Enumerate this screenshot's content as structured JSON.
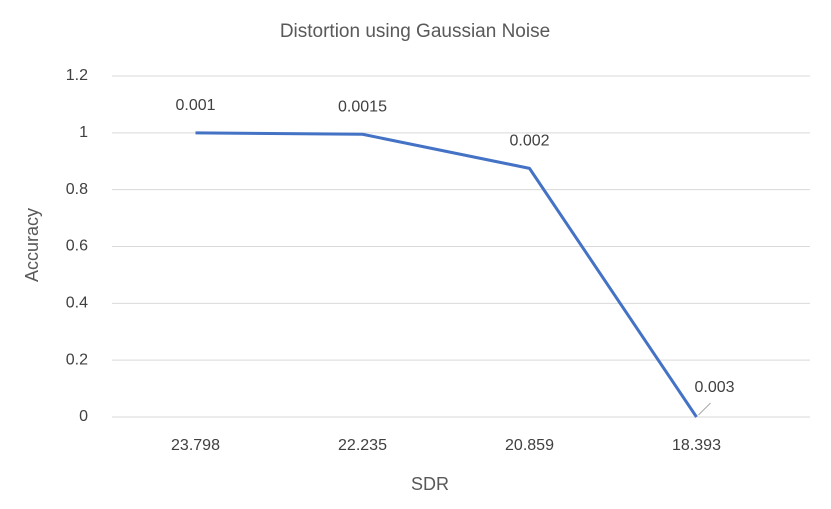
{
  "chart_data": {
    "type": "line",
    "title": "Distortion using Gaussian Noise",
    "x_label": "SDR",
    "y_label": "Accuracy",
    "categories": [
      "23.798",
      "22.235",
      "20.859",
      "18.393"
    ],
    "series": [
      {
        "name": "Accuracy",
        "color": "#4472c4",
        "values": [
          1,
          0.995,
          0.875,
          0
        ]
      }
    ],
    "annotations": [
      "0.001",
      "0.0015",
      "0.002",
      "0.003"
    ],
    "ylim": [
      0,
      1.2
    ],
    "yticks": [
      0,
      0.2,
      0.4,
      0.6,
      0.8,
      1,
      1.2
    ],
    "grid": true
  }
}
